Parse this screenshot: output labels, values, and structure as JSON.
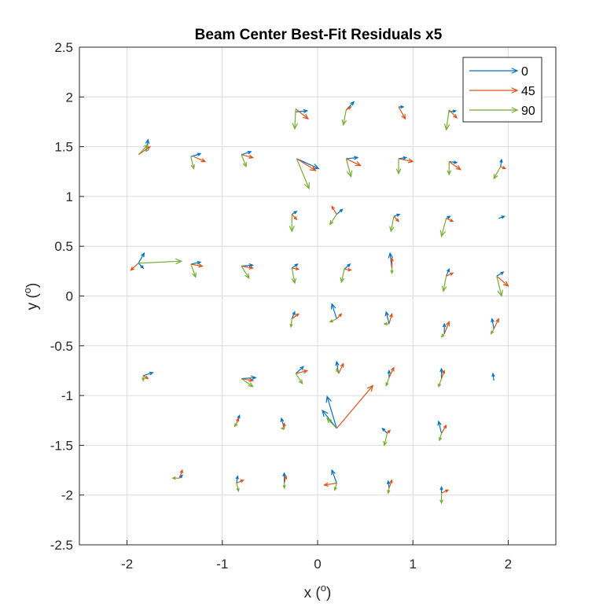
{
  "chart_data": {
    "type": "quiver",
    "title": "Beam Center Best-Fit Residuals x5",
    "xlabel": "x",
    "ylabel": "y",
    "unit_superscript": "o",
    "xlim": [
      -2.5,
      2.5
    ],
    "ylim": [
      -2.5,
      2.5
    ],
    "xticks": [
      "-2",
      "-1",
      "0",
      "1",
      "2"
    ],
    "yticks": [
      "2.5",
      "2",
      "1.5",
      "1",
      "0.5",
      "0",
      "-0.5",
      "-1",
      "-1.5",
      "-2",
      "-2.5"
    ],
    "grid": true,
    "legend_position": "top-right",
    "series": [
      {
        "name": "0",
        "color": "#0072BD",
        "arrows": [
          [
            -1.8,
            1.45,
            0.02,
            0.12
          ],
          [
            -1.33,
            1.4,
            0.1,
            0.03
          ],
          [
            -0.8,
            1.42,
            0.1,
            0.03
          ],
          [
            -0.23,
            1.85,
            0.12,
            0.01
          ],
          [
            0.3,
            1.87,
            0.08,
            0.08
          ],
          [
            0.85,
            1.9,
            0.05,
            0.0
          ],
          [
            1.38,
            1.85,
            0.07,
            0.01
          ],
          [
            -0.22,
            1.38,
            0.23,
            -0.1
          ],
          [
            0.3,
            1.38,
            0.12,
            0.01
          ],
          [
            0.85,
            1.38,
            0.08,
            0.01
          ],
          [
            1.38,
            1.35,
            0.08,
            -0.01
          ],
          [
            1.92,
            1.3,
            0.01,
            0.07
          ],
          [
            -0.27,
            0.82,
            0.05,
            0.03
          ],
          [
            0.2,
            0.82,
            0.06,
            0.05
          ],
          [
            0.8,
            0.8,
            0.06,
            0.02
          ],
          [
            1.35,
            0.78,
            0.04,
            0.02
          ],
          [
            1.9,
            0.78,
            0.06,
            0.02
          ],
          [
            -1.88,
            0.33,
            0.06,
            0.1
          ],
          [
            -1.88,
            0.33,
            0.05,
            -0.05
          ],
          [
            -1.33,
            0.32,
            0.1,
            0.02
          ],
          [
            -0.8,
            0.3,
            0.12,
            0.01
          ],
          [
            -0.27,
            0.28,
            0.06,
            0.04
          ],
          [
            0.28,
            0.27,
            0.06,
            0.05
          ],
          [
            0.78,
            0.28,
            -0.02,
            0.15
          ],
          [
            1.35,
            0.2,
            0.03,
            0.07
          ],
          [
            1.88,
            0.2,
            0.07,
            0.04
          ],
          [
            -0.27,
            -0.23,
            0.03,
            0.07
          ],
          [
            0.2,
            -0.23,
            -0.05,
            0.15
          ],
          [
            0.75,
            -0.28,
            -0.03,
            0.12
          ],
          [
            1.33,
            -0.38,
            0.0,
            0.1
          ],
          [
            1.85,
            -0.33,
            -0.02,
            0.1
          ],
          [
            -1.83,
            -0.8,
            0.1,
            0.03
          ],
          [
            -0.8,
            -0.83,
            0.15,
            0.01
          ],
          [
            -0.23,
            -0.78,
            0.08,
            0.07
          ],
          [
            0.22,
            -0.78,
            -0.02,
            0.12
          ],
          [
            0.75,
            -0.82,
            0.0,
            0.07
          ],
          [
            1.3,
            -0.83,
            0.0,
            0.1
          ],
          [
            1.85,
            -0.85,
            -0.01,
            0.07
          ],
          [
            0.2,
            -1.33,
            -0.1,
            0.32
          ],
          [
            0.2,
            -1.33,
            -0.15,
            0.18
          ],
          [
            -0.85,
            -1.28,
            0.03,
            0.08
          ],
          [
            -0.35,
            -1.33,
            -0.03,
            0.1
          ],
          [
            0.73,
            -1.38,
            -0.05,
            0.05
          ],
          [
            1.3,
            -1.38,
            -0.03,
            0.12
          ],
          [
            -1.45,
            -1.83,
            0.03,
            0.03
          ],
          [
            -0.85,
            -1.88,
            0.01,
            0.07
          ],
          [
            -0.35,
            -1.88,
            0.0,
            0.1
          ],
          [
            0.2,
            -1.88,
            -0.05,
            0.13
          ],
          [
            0.75,
            -1.93,
            -0.01,
            0.07
          ],
          [
            1.3,
            -1.98,
            0.0,
            0.06
          ]
        ]
      },
      {
        "name": "45",
        "color": "#D95319",
        "arrows": [
          [
            -1.88,
            1.42,
            0.12,
            0.08
          ],
          [
            -1.3,
            1.4,
            0.12,
            -0.05
          ],
          [
            -0.8,
            1.42,
            0.12,
            -0.03
          ],
          [
            -0.23,
            1.88,
            0.13,
            -0.1
          ],
          [
            0.3,
            1.87,
            0.05,
            0.03
          ],
          [
            0.85,
            1.9,
            0.07,
            -0.12
          ],
          [
            1.38,
            1.87,
            0.08,
            -0.08
          ],
          [
            -0.22,
            1.38,
            0.2,
            -0.12
          ],
          [
            0.3,
            1.38,
            0.15,
            -0.07
          ],
          [
            0.85,
            1.38,
            0.15,
            -0.03
          ],
          [
            1.38,
            1.35,
            0.12,
            -0.08
          ],
          [
            1.92,
            1.3,
            0.05,
            -0.02
          ],
          [
            -0.27,
            0.82,
            0.05,
            -0.05
          ],
          [
            0.2,
            0.82,
            -0.05,
            0.08
          ],
          [
            0.8,
            0.8,
            0.05,
            -0.05
          ],
          [
            1.35,
            0.78,
            0.07,
            -0.03
          ],
          [
            -1.88,
            0.33,
            -0.08,
            -0.07
          ],
          [
            -1.33,
            0.32,
            0.12,
            -0.02
          ],
          [
            -0.8,
            0.3,
            0.12,
            -0.02
          ],
          [
            -0.27,
            0.28,
            0.07,
            -0.01
          ],
          [
            0.28,
            0.27,
            0.07,
            -0.01
          ],
          [
            0.78,
            0.28,
            0.0,
            0.1
          ],
          [
            1.35,
            0.2,
            0.07,
            0.03
          ],
          [
            1.88,
            0.2,
            0.12,
            -0.1
          ],
          [
            -0.27,
            -0.23,
            0.07,
            0.05
          ],
          [
            0.2,
            -0.23,
            0.05,
            0.05
          ],
          [
            0.75,
            -0.28,
            0.03,
            0.1
          ],
          [
            1.33,
            -0.38,
            0.05,
            0.12
          ],
          [
            1.85,
            -0.33,
            0.05,
            0.1
          ],
          [
            -1.83,
            -0.8,
            0.05,
            -0.03
          ],
          [
            -0.8,
            -0.83,
            0.12,
            -0.02
          ],
          [
            -0.23,
            -0.78,
            0.12,
            0.03
          ],
          [
            0.22,
            -0.78,
            0.05,
            0.1
          ],
          [
            0.75,
            -0.82,
            0.05,
            0.1
          ],
          [
            1.3,
            -0.83,
            0.03,
            0.08
          ],
          [
            0.2,
            -1.33,
            0.38,
            0.43
          ],
          [
            -0.85,
            -1.28,
            0.02,
            0.05
          ],
          [
            -0.35,
            -1.33,
            0.0,
            0.05
          ],
          [
            0.73,
            -1.38,
            0.03,
            0.03
          ],
          [
            1.3,
            -1.38,
            0.05,
            0.08
          ],
          [
            -1.45,
            -1.83,
            0.03,
            0.08
          ],
          [
            -0.85,
            -1.88,
            0.07,
            0.03
          ],
          [
            -0.35,
            -1.88,
            0.02,
            0.07
          ],
          [
            0.2,
            -1.88,
            -0.13,
            -0.02
          ],
          [
            0.75,
            -1.93,
            0.03,
            0.08
          ],
          [
            1.3,
            -1.98,
            0.07,
            0.03
          ]
        ]
      },
      {
        "name": "90",
        "color": "#77AC30",
        "arrows": [
          [
            -1.88,
            1.42,
            0.1,
            0.1
          ],
          [
            -1.33,
            1.4,
            0.03,
            -0.12
          ],
          [
            -0.8,
            1.42,
            0.05,
            -0.12
          ],
          [
            -0.23,
            1.88,
            -0.01,
            -0.2
          ],
          [
            0.3,
            1.87,
            -0.03,
            -0.15
          ],
          [
            1.38,
            1.87,
            -0.03,
            -0.2
          ],
          [
            -0.22,
            1.38,
            0.13,
            -0.3
          ],
          [
            0.3,
            1.38,
            0.05,
            -0.18
          ],
          [
            0.85,
            1.38,
            0.0,
            -0.15
          ],
          [
            1.38,
            1.35,
            0.0,
            -0.13
          ],
          [
            1.92,
            1.3,
            -0.07,
            -0.12
          ],
          [
            -0.27,
            0.82,
            0.0,
            -0.17
          ],
          [
            0.2,
            0.82,
            -0.07,
            -0.1
          ],
          [
            0.8,
            0.8,
            -0.03,
            -0.15
          ],
          [
            1.35,
            0.78,
            -0.05,
            -0.18
          ],
          [
            -1.88,
            0.33,
            0.45,
            0.02
          ],
          [
            -1.33,
            0.32,
            0.05,
            -0.13
          ],
          [
            -0.8,
            0.3,
            0.08,
            -0.12
          ],
          [
            -0.27,
            0.28,
            0.03,
            -0.15
          ],
          [
            0.28,
            0.27,
            -0.03,
            -0.13
          ],
          [
            0.78,
            0.28,
            0.0,
            -0.05
          ],
          [
            1.35,
            0.2,
            -0.03,
            -0.15
          ],
          [
            1.88,
            0.2,
            0.05,
            -0.2
          ],
          [
            -0.27,
            -0.23,
            -0.01,
            -0.08
          ],
          [
            0.2,
            -0.23,
            -0.07,
            -0.03
          ],
          [
            0.75,
            -0.28,
            -0.05,
            0.0
          ],
          [
            1.33,
            -0.38,
            -0.03,
            -0.03
          ],
          [
            1.85,
            -0.33,
            -0.03,
            -0.05
          ],
          [
            -1.83,
            -0.8,
            0.0,
            -0.05
          ],
          [
            -0.8,
            -0.83,
            0.12,
            -0.08
          ],
          [
            -0.23,
            -0.78,
            0.07,
            -0.1
          ],
          [
            0.22,
            -0.78,
            -0.02,
            0.05
          ],
          [
            0.75,
            -0.82,
            -0.03,
            -0.08
          ],
          [
            1.3,
            -0.83,
            -0.03,
            -0.08
          ],
          [
            0.2,
            -1.33,
            -0.1,
            0.1
          ],
          [
            -0.85,
            -1.28,
            -0.02,
            -0.03
          ],
          [
            -0.35,
            -1.33,
            -0.03,
            0.0
          ],
          [
            0.73,
            -1.38,
            -0.03,
            -0.12
          ],
          [
            1.3,
            -1.38,
            -0.02,
            -0.07
          ],
          [
            -1.45,
            -1.83,
            -0.07,
            0.0
          ],
          [
            -0.85,
            -1.88,
            0.02,
            -0.08
          ],
          [
            -0.35,
            -1.88,
            0.0,
            -0.05
          ],
          [
            0.2,
            -1.88,
            -0.02,
            -0.07
          ],
          [
            0.75,
            -1.93,
            -0.01,
            -0.05
          ],
          [
            1.3,
            -1.98,
            0.0,
            -0.1
          ]
        ]
      }
    ]
  }
}
